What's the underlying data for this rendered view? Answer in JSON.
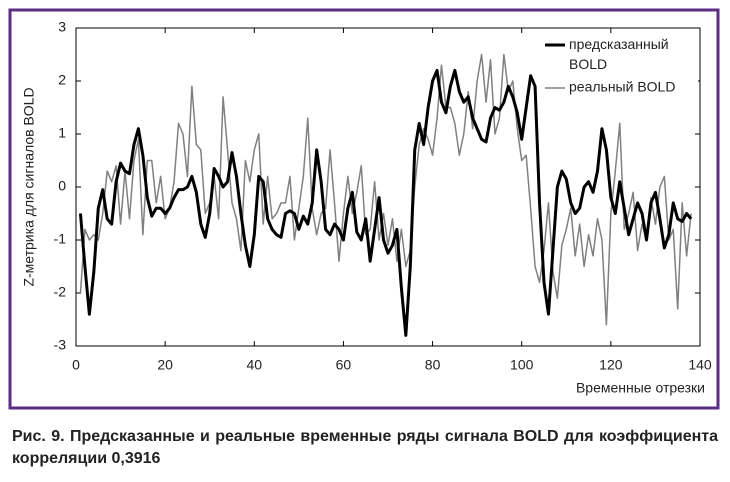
{
  "chart_data": {
    "type": "line",
    "x": [
      1,
      2,
      3,
      4,
      5,
      6,
      7,
      8,
      9,
      10,
      11,
      12,
      13,
      14,
      15,
      16,
      17,
      18,
      19,
      20,
      21,
      22,
      23,
      24,
      25,
      26,
      27,
      28,
      29,
      30,
      31,
      32,
      33,
      34,
      35,
      36,
      37,
      38,
      39,
      40,
      41,
      42,
      43,
      44,
      45,
      46,
      47,
      48,
      49,
      50,
      51,
      52,
      53,
      54,
      55,
      56,
      57,
      58,
      59,
      60,
      61,
      62,
      63,
      64,
      65,
      66,
      67,
      68,
      69,
      70,
      71,
      72,
      73,
      74,
      75,
      76,
      77,
      78,
      79,
      80,
      81,
      82,
      83,
      84,
      85,
      86,
      87,
      88,
      89,
      90,
      91,
      92,
      93,
      94,
      95,
      96,
      97,
      98,
      99,
      100,
      101,
      102,
      103,
      104,
      105,
      106,
      107,
      108,
      109,
      110,
      111,
      112,
      113,
      114,
      115,
      116,
      117,
      118,
      119,
      120,
      121,
      122,
      123,
      124,
      125,
      126,
      127,
      128,
      129,
      130,
      131,
      132,
      133,
      134,
      135,
      136,
      137,
      138
    ],
    "series": [
      {
        "name": "предсказанный BOLD",
        "color": "#000000",
        "width": 3,
        "values": [
          -0.5,
          -1.5,
          -2.4,
          -1.6,
          -0.4,
          -0.05,
          -0.6,
          -0.7,
          0.1,
          0.45,
          0.3,
          0.25,
          0.8,
          1.1,
          0.6,
          -0.2,
          -0.55,
          -0.4,
          -0.4,
          -0.5,
          -0.4,
          -0.2,
          -0.05,
          -0.05,
          0.0,
          0.2,
          -0.1,
          -0.7,
          -0.95,
          -0.5,
          0.35,
          0.2,
          0.0,
          0.1,
          0.65,
          0.2,
          -0.5,
          -1.1,
          -1.5,
          -0.9,
          0.2,
          0.1,
          -0.6,
          -0.8,
          -0.9,
          -0.95,
          -0.5,
          -0.45,
          -0.5,
          -0.8,
          -0.55,
          -0.7,
          -0.3,
          0.7,
          0.1,
          -0.8,
          -0.9,
          -0.7,
          -0.8,
          -1.0,
          -0.4,
          -0.1,
          -0.85,
          -1.0,
          -0.6,
          -1.4,
          -0.8,
          -0.2,
          -1.0,
          -1.25,
          -1.1,
          -0.8,
          -1.9,
          -2.8,
          -1.5,
          0.7,
          1.2,
          0.8,
          1.5,
          2.0,
          2.2,
          1.6,
          1.4,
          1.9,
          2.2,
          1.8,
          1.6,
          1.7,
          1.3,
          1.1,
          0.9,
          0.85,
          1.3,
          1.5,
          1.45,
          1.6,
          1.9,
          1.7,
          1.4,
          0.9,
          1.5,
          2.1,
          1.9,
          -0.3,
          -1.8,
          -2.4,
          -1.2,
          0.0,
          0.3,
          0.15,
          -0.3,
          -0.5,
          -0.4,
          0.0,
          0.1,
          -0.1,
          0.3,
          1.1,
          0.7,
          -0.2,
          -0.5,
          0.1,
          -0.4,
          -0.9,
          -0.6,
          -0.3,
          -0.5,
          -1.0,
          -0.3,
          -0.1,
          -0.6,
          -1.15,
          -0.9,
          -0.3,
          -0.6,
          -0.65,
          -0.5,
          -0.6
        ]
      },
      {
        "name": "реальный BOLD",
        "color": "#808080",
        "width": 1.5,
        "values": [
          -2.0,
          -0.8,
          -1.0,
          -0.9,
          -1.0,
          -0.5,
          0.3,
          0.1,
          0.4,
          -0.7,
          0.3,
          -0.6,
          0.5,
          0.9,
          -0.9,
          0.5,
          0.5,
          -0.3,
          0.2,
          -0.6,
          -0.4,
          0.1,
          1.2,
          1.0,
          0.2,
          1.9,
          0.8,
          0.7,
          -0.5,
          -0.3,
          0.2,
          -0.6,
          1.7,
          0.7,
          -0.3,
          -0.6,
          -1.2,
          0.5,
          0.1,
          0.7,
          1.0,
          -0.7,
          0.2,
          -0.6,
          -0.5,
          -0.3,
          -0.3,
          0.2,
          -1.0,
          -0.4,
          0.2,
          1.3,
          -0.4,
          -0.9,
          -0.5,
          -0.4,
          0.7,
          -0.3,
          -1.4,
          -0.5,
          0.2,
          -0.5,
          -0.1,
          0.4,
          -0.9,
          -0.8,
          0.1,
          -1.0,
          -0.5,
          -1.1,
          -0.6,
          -1.4,
          -0.8,
          -1.5,
          -1.2,
          0.0,
          0.8,
          1.1,
          0.9,
          0.6,
          1.3,
          2.3,
          1.5,
          1.5,
          1.2,
          0.6,
          1.0,
          1.8,
          1.1,
          2.0,
          2.5,
          1.6,
          2.4,
          1.0,
          1.3,
          2.5,
          1.8,
          2.0,
          1.1,
          0.5,
          0.6,
          -0.4,
          -1.5,
          -1.8,
          -1.2,
          -0.3,
          -1.6,
          -2.1,
          -1.1,
          -0.8,
          -0.4,
          -1.3,
          -0.7,
          -1.5,
          -0.9,
          -1.3,
          -0.6,
          -1.0,
          -2.6,
          -0.5,
          0.3,
          1.2,
          -0.8,
          -0.5,
          -0.1,
          -1.2,
          -0.7,
          -1.0,
          -0.2,
          -0.7,
          0.0,
          0.2,
          -1.0,
          -0.8,
          -2.3,
          -0.3,
          -1.3,
          -0.5
        ]
      }
    ],
    "xlim": [
      0,
      140
    ],
    "xticks": [
      0,
      20,
      40,
      60,
      80,
      100,
      120,
      140
    ],
    "ylim": [
      -3,
      3
    ],
    "yticks": [
      -3,
      -2,
      -1,
      0,
      1,
      2,
      3
    ],
    "xlabel": "Временные отрезки",
    "ylabel": "Z-метрика для сигналов BOLD",
    "legend": "upper right",
    "grid": false
  },
  "caption": "Рис. 9. Предсказанные и реальные временные ряды сигнала BOLD для коэффициента корреляции 0,3916"
}
